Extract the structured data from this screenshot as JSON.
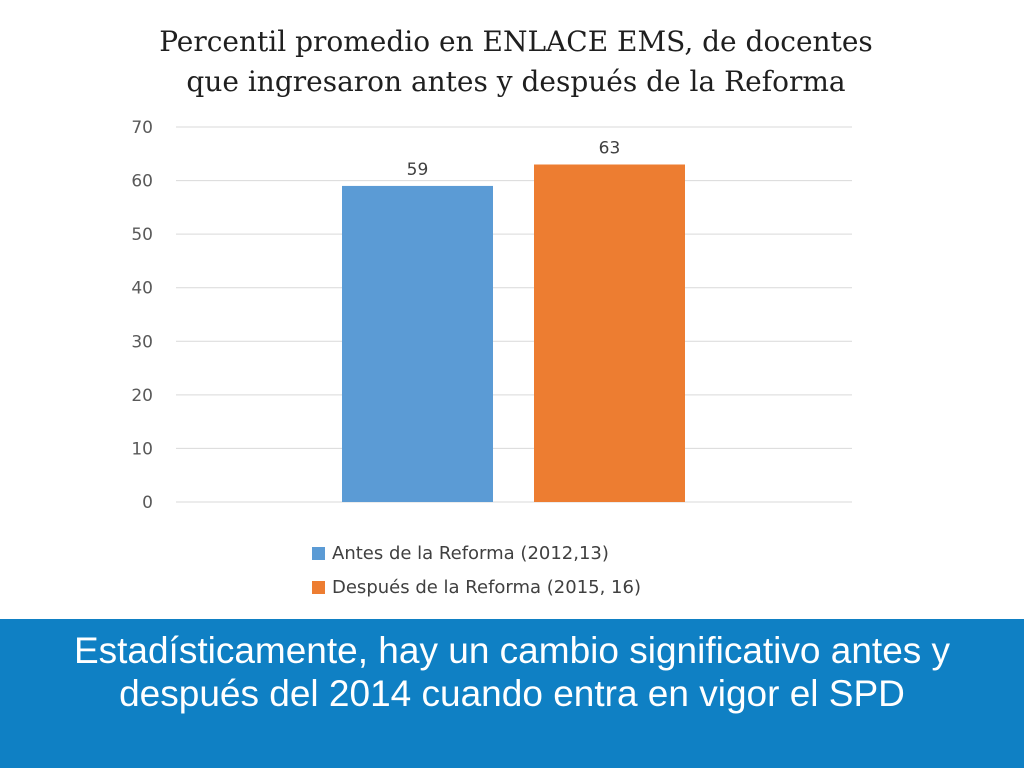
{
  "chart_data": {
    "type": "bar",
    "title_lines": [
      "Percentil promedio en ENLACE EMS, de docentes",
      "que ingresaron antes y después de la Reforma"
    ],
    "series": [
      {
        "name": "Antes de la Reforma (2012,13)",
        "values": [
          59
        ],
        "color": "#5b9bd5"
      },
      {
        "name": "Después de la Reforma (2015, 16)",
        "values": [
          63
        ],
        "color": "#ed7d31"
      }
    ],
    "ylim": [
      0,
      70
    ],
    "yticks": [
      "0",
      "10",
      "20",
      "30",
      "40",
      "50",
      "60",
      "70"
    ],
    "grid": true,
    "legend_position": "bottom"
  },
  "banner": {
    "lines": [
      "Estadísticamente, hay un cambio significativo antes y",
      "después del 2014 cuando entra en vigor el SPD"
    ],
    "background": "#0f80c4"
  }
}
